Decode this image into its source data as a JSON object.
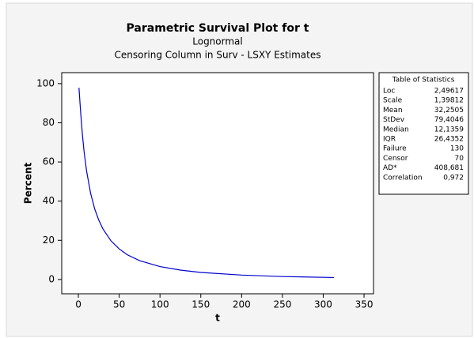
{
  "chart_data": {
    "type": "line",
    "title": "Parametric Survival Plot for t",
    "subtitle": "Lognormal",
    "subtitle2": "Censoring Column in Surv - LSXY Estimates",
    "x_label": "t",
    "y_label": "Percent",
    "x": [
      0.7,
      1,
      2,
      3,
      5,
      7,
      10,
      15,
      20,
      25,
      30,
      40,
      50,
      60,
      75,
      100,
      125,
      150,
      200,
      250,
      313
    ],
    "values": [
      97.9,
      96.3,
      90.1,
      84.1,
      73.7,
      65.3,
      55.5,
      44.0,
      36.0,
      30.3,
      25.9,
      19.7,
      15.6,
      12.6,
      9.6,
      6.6,
      4.8,
      3.6,
      2.25,
      1.5,
      1.0
    ],
    "color": "#0000cc",
    "xlim": [
      -20.4,
      361.6
    ],
    "xticks": [
      0,
      50,
      100,
      150,
      200,
      250,
      300,
      350
    ],
    "ylim": [
      -7.3,
      105.6
    ],
    "yticks": [
      0,
      20,
      40,
      60,
      80,
      100
    ],
    "grid": false,
    "stats_title": "Table of Statistics",
    "stats": [
      [
        "Loc",
        "2,49617"
      ],
      [
        "Scale",
        "1,39812"
      ],
      [
        "Mean",
        "32,2505"
      ],
      [
        "StDev",
        "79,4046"
      ],
      [
        "Median",
        "12,1359"
      ],
      [
        "IQR",
        "26,4352"
      ],
      [
        "Failure",
        "130"
      ],
      [
        "Censor",
        "70"
      ],
      [
        "AD*",
        "408,681"
      ],
      [
        "Correlation",
        "0,972"
      ]
    ]
  }
}
